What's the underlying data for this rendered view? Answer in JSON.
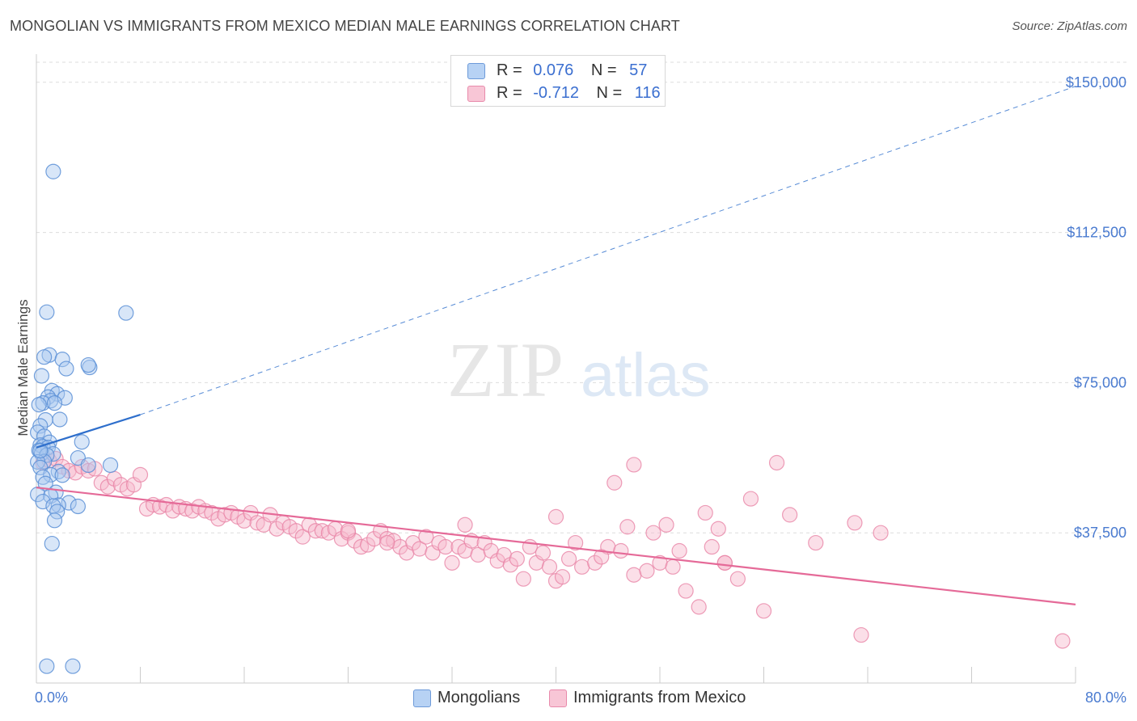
{
  "title": "MONGOLIAN VS IMMIGRANTS FROM MEXICO MEDIAN MALE EARNINGS CORRELATION CHART",
  "source": "Source: ZipAtlas.com",
  "watermark": {
    "zip": "ZIP",
    "atlas": "atlas"
  },
  "legend": {
    "rows": [
      {
        "r_label": "R =",
        "r_value": "0.076",
        "n_label": "N =",
        "n_value": "57"
      },
      {
        "r_label": "R =",
        "r_value": "-0.712",
        "n_label": "N =",
        "n_value": "116"
      }
    ]
  },
  "bottom_legend": {
    "mongolians": "Mongolians",
    "mexico": "Immigrants from Mexico"
  },
  "colors": {
    "blue_fill": "#a9c8f0",
    "blue_stroke": "#5b8fd6",
    "blue_line": "#2e6fcc",
    "pink_fill": "#f6b8cc",
    "pink_stroke": "#e884a6",
    "pink_line": "#e56a98",
    "tick_text": "#4a7bd0",
    "grid": "#dddddd"
  },
  "chart_data": {
    "type": "scatter",
    "title": "MONGOLIAN VS IMMIGRANTS FROM MEXICO MEDIAN MALE EARNINGS CORRELATION CHART",
    "xlabel": "",
    "ylabel": "Median Male Earnings",
    "xlim": [
      0,
      80
    ],
    "ylim": [
      0,
      155000
    ],
    "x_tick_labels": [
      "0.0%",
      "80.0%"
    ],
    "y_ticks": [
      37500,
      75000,
      112500,
      150000
    ],
    "y_tick_labels": [
      "$37,500",
      "$75,000",
      "$112,500",
      "$150,000"
    ],
    "series": [
      {
        "name": "Mongolians",
        "R": 0.076,
        "N": 57,
        "trend": {
          "x": [
            0,
            8
          ],
          "y": [
            58800,
            67000
          ],
          "dashed_to": [
            80,
            149000
          ]
        },
        "points": [
          [
            1.3,
            127700
          ],
          [
            0.8,
            92600
          ],
          [
            6.9,
            92400
          ],
          [
            1.0,
            81900
          ],
          [
            0.6,
            81400
          ],
          [
            2.0,
            80800
          ],
          [
            4.1,
            78800
          ],
          [
            2.3,
            78500
          ],
          [
            4.0,
            79400
          ],
          [
            0.4,
            76700
          ],
          [
            1.2,
            73000
          ],
          [
            1.6,
            72200
          ],
          [
            0.9,
            71400
          ],
          [
            2.2,
            71200
          ],
          [
            1.1,
            70500
          ],
          [
            0.5,
            69900
          ],
          [
            0.2,
            69500
          ],
          [
            1.4,
            69900
          ],
          [
            0.7,
            65700
          ],
          [
            1.8,
            65800
          ],
          [
            0.3,
            64200
          ],
          [
            0.1,
            62600
          ],
          [
            0.6,
            61600
          ],
          [
            3.5,
            60200
          ],
          [
            1.0,
            60100
          ],
          [
            0.3,
            59400
          ],
          [
            0.5,
            59000
          ],
          [
            0.9,
            58800
          ],
          [
            0.2,
            58100
          ],
          [
            0.4,
            57300
          ],
          [
            1.3,
            57200
          ],
          [
            0.8,
            56900
          ],
          [
            3.2,
            56200
          ],
          [
            0.6,
            55300
          ],
          [
            0.1,
            55200
          ],
          [
            5.7,
            54400
          ],
          [
            0.3,
            53800
          ],
          [
            4.0,
            54400
          ],
          [
            1.7,
            52800
          ],
          [
            1.1,
            52000
          ],
          [
            2.0,
            51900
          ],
          [
            0.5,
            51400
          ],
          [
            0.7,
            49800
          ],
          [
            1.5,
            47600
          ],
          [
            0.1,
            47100
          ],
          [
            1.1,
            46700
          ],
          [
            0.5,
            45300
          ],
          [
            2.5,
            45000
          ],
          [
            3.2,
            44100
          ],
          [
            1.7,
            44400
          ],
          [
            1.3,
            44200
          ],
          [
            1.6,
            42800
          ],
          [
            1.4,
            40600
          ],
          [
            1.2,
            34800
          ],
          [
            0.8,
            4200
          ],
          [
            2.8,
            4200
          ],
          [
            0.3,
            58000
          ]
        ]
      },
      {
        "name": "Immigrants from Mexico",
        "R": -0.712,
        "N": 116,
        "trend": {
          "x": [
            0,
            80
          ],
          "y": [
            48800,
            19600
          ]
        },
        "points": [
          [
            0.5,
            55000
          ],
          [
            1.0,
            55500
          ],
          [
            1.5,
            56000
          ],
          [
            2.0,
            54000
          ],
          [
            2.5,
            53000
          ],
          [
            3.0,
            52500
          ],
          [
            3.5,
            54000
          ],
          [
            4.0,
            53000
          ],
          [
            4.5,
            53500
          ],
          [
            5.0,
            50000
          ],
          [
            5.5,
            49000
          ],
          [
            6.0,
            51000
          ],
          [
            6.5,
            49500
          ],
          [
            7.0,
            48500
          ],
          [
            7.5,
            49500
          ],
          [
            8.0,
            52000
          ],
          [
            8.5,
            43500
          ],
          [
            9.0,
            44500
          ],
          [
            9.5,
            44000
          ],
          [
            10.0,
            44500
          ],
          [
            10.5,
            43000
          ],
          [
            11.0,
            44000
          ],
          [
            11.5,
            43500
          ],
          [
            12.0,
            43000
          ],
          [
            12.5,
            44000
          ],
          [
            13.0,
            43000
          ],
          [
            13.5,
            42500
          ],
          [
            14.0,
            41000
          ],
          [
            14.5,
            42000
          ],
          [
            15.0,
            42500
          ],
          [
            15.5,
            41500
          ],
          [
            16.0,
            40500
          ],
          [
            16.5,
            42500
          ],
          [
            17.0,
            40000
          ],
          [
            17.5,
            39500
          ],
          [
            18.0,
            42000
          ],
          [
            18.5,
            38500
          ],
          [
            19.0,
            40000
          ],
          [
            19.5,
            39000
          ],
          [
            20.0,
            38000
          ],
          [
            20.5,
            36500
          ],
          [
            21.0,
            39500
          ],
          [
            21.5,
            38000
          ],
          [
            22.0,
            38000
          ],
          [
            22.5,
            37500
          ],
          [
            23.0,
            38500
          ],
          [
            23.5,
            36000
          ],
          [
            24.0,
            37500
          ],
          [
            24.5,
            35500
          ],
          [
            25.0,
            34000
          ],
          [
            25.5,
            34500
          ],
          [
            26.0,
            36000
          ],
          [
            26.5,
            38000
          ],
          [
            27.0,
            36000
          ],
          [
            27.5,
            35500
          ],
          [
            28.0,
            34000
          ],
          [
            28.5,
            32500
          ],
          [
            29.0,
            35000
          ],
          [
            29.5,
            33500
          ],
          [
            30.0,
            36500
          ],
          [
            30.5,
            32500
          ],
          [
            31.0,
            35000
          ],
          [
            31.5,
            34000
          ],
          [
            32.0,
            30000
          ],
          [
            32.5,
            34000
          ],
          [
            33.0,
            33000
          ],
          [
            33.5,
            35500
          ],
          [
            34.0,
            32000
          ],
          [
            34.5,
            35000
          ],
          [
            35.0,
            33000
          ],
          [
            35.5,
            30500
          ],
          [
            36.0,
            32000
          ],
          [
            36.5,
            29500
          ],
          [
            37.0,
            31000
          ],
          [
            37.5,
            26000
          ],
          [
            38.0,
            34000
          ],
          [
            38.5,
            30000
          ],
          [
            39.0,
            32500
          ],
          [
            39.5,
            29000
          ],
          [
            40.0,
            25500
          ],
          [
            40.5,
            26500
          ],
          [
            41.0,
            31000
          ],
          [
            41.5,
            35000
          ],
          [
            42.0,
            29000
          ],
          [
            43.0,
            30000
          ],
          [
            44.0,
            34000
          ],
          [
            45.0,
            33000
          ],
          [
            46.0,
            27000
          ],
          [
            47.0,
            28000
          ],
          [
            48.0,
            30000
          ],
          [
            49.0,
            29000
          ],
          [
            50.0,
            23000
          ],
          [
            51.0,
            19000
          ],
          [
            52.0,
            34000
          ],
          [
            53.0,
            30000
          ],
          [
            54.0,
            26000
          ],
          [
            55.0,
            46000
          ],
          [
            56.0,
            18000
          ],
          [
            57.0,
            55000
          ],
          [
            58.0,
            42000
          ],
          [
            60.0,
            35000
          ],
          [
            63.0,
            40000
          ],
          [
            63.5,
            12000
          ],
          [
            65.0,
            37500
          ],
          [
            79.0,
            10500
          ],
          [
            44.5,
            50000
          ],
          [
            46.0,
            54500
          ],
          [
            40.0,
            41500
          ],
          [
            47.5,
            37500
          ],
          [
            53.0,
            30000
          ],
          [
            51.5,
            42500
          ],
          [
            49.5,
            33000
          ],
          [
            48.5,
            39500
          ],
          [
            43.5,
            31500
          ],
          [
            45.5,
            39000
          ],
          [
            52.5,
            38500
          ],
          [
            33.0,
            39500
          ],
          [
            27.0,
            35000
          ],
          [
            24.0,
            38000
          ]
        ]
      }
    ]
  }
}
